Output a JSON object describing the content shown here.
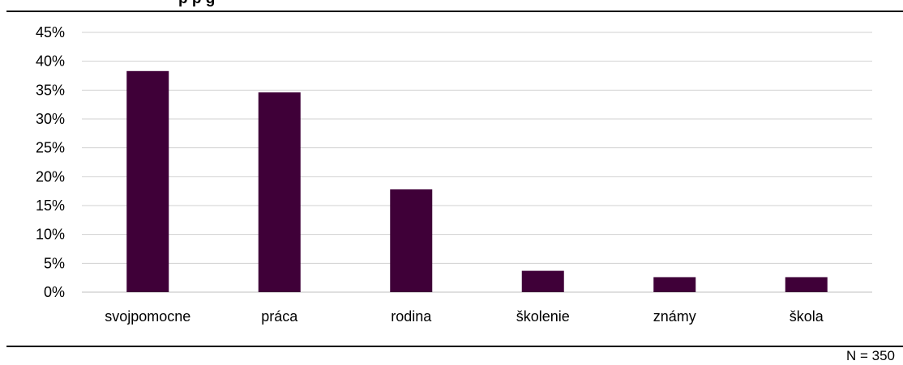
{
  "header": {
    "title_fragment": "p               p        g"
  },
  "footer": {
    "note": "N = 350"
  },
  "chart_data": {
    "type": "bar",
    "categories": [
      "svojpomocne",
      "práca",
      "rodina",
      "školenie",
      "známy",
      "škola"
    ],
    "values": [
      38.3,
      34.6,
      17.8,
      3.7,
      2.6,
      2.6
    ],
    "ylim": [
      0,
      45
    ],
    "yticks": [
      0,
      5,
      10,
      15,
      20,
      25,
      30,
      35,
      40,
      45
    ],
    "ytick_labels": [
      "0%",
      "5%",
      "10%",
      "15%",
      "20%",
      "25%",
      "30%",
      "35%",
      "40%",
      "45%"
    ],
    "grid": true,
    "bar_color": "#3f0038",
    "grid_color": "#d0d0d0"
  }
}
